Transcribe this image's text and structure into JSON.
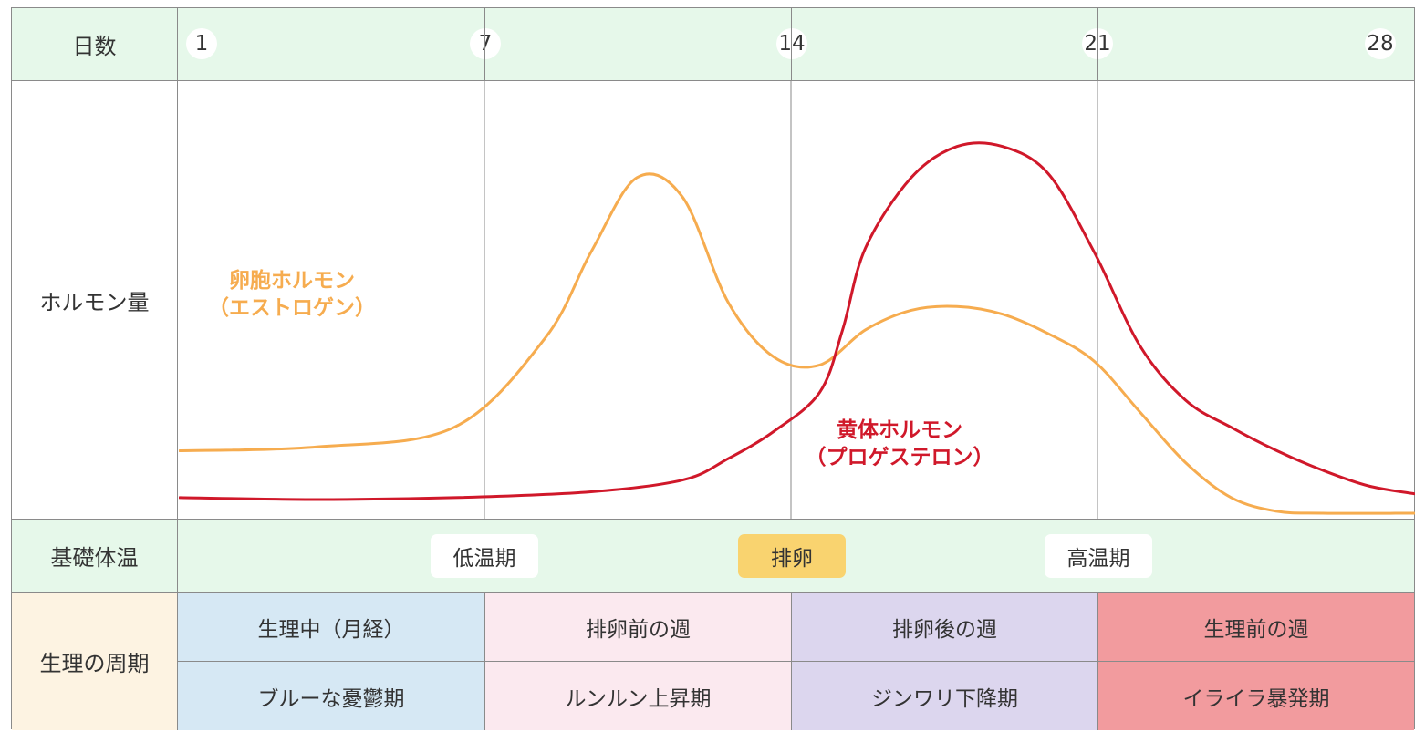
{
  "rows": {
    "days_label": "日数",
    "hormone_label": "ホルモン量",
    "temp_label": "基礎体温",
    "cycle_label": "生理の周期"
  },
  "days": [
    "1",
    "7",
    "14",
    "21",
    "28"
  ],
  "temperature": {
    "low": "低温期",
    "ovulation": "排卵",
    "high": "高温期"
  },
  "cycle": [
    {
      "top": "生理中（月経）",
      "bottom": "ブルーな憂鬱期",
      "color": "#d6e8f4"
    },
    {
      "top": "排卵前の週",
      "bottom": "ルンルン上昇期",
      "color": "#fbe9ef"
    },
    {
      "top": "排卵後の週",
      "bottom": "ジンワリ下降期",
      "color": "#dcd6ee"
    },
    {
      "top": "生理前の週",
      "bottom": "イライラ暴発期",
      "color": "#f29b9e"
    }
  ],
  "colors": {
    "estrogen": "#f6ac4f",
    "progesterone": "#d0182a",
    "ovulation_badge": "#f9d36f"
  },
  "chart_data": {
    "type": "line",
    "xlabel": "日数",
    "ylabel": "ホルモン量",
    "x_ticks": [
      1,
      7,
      14,
      21,
      28
    ],
    "xlim": [
      1,
      28
    ],
    "ylim": [
      0,
      100
    ],
    "series": [
      {
        "name": "卵胞ホルモン（エストロゲン）",
        "name_line1": "卵胞ホルモン",
        "name_line2": "（エストロゲン）",
        "color": "#f6ac4f",
        "x": [
          1,
          4,
          7,
          9,
          10,
          11,
          12,
          13,
          14,
          15,
          16,
          17,
          18,
          19,
          20,
          21,
          22,
          23,
          24,
          25,
          26,
          28
        ],
        "y": [
          16,
          17,
          22,
          45,
          67,
          86,
          81,
          54,
          40,
          38,
          47,
          52,
          53,
          51,
          46,
          39,
          26,
          13,
          4,
          0.5,
          0,
          0
        ]
      },
      {
        "name": "黄体ホルモン（プロゲステロン）",
        "name_line1": "黄体ホルモン",
        "name_line2": "（プロゲステロン）",
        "color": "#d0182a",
        "x": [
          1,
          4,
          7,
          10,
          12,
          13,
          14,
          15,
          15.5,
          16,
          17,
          18,
          19,
          20,
          21,
          22,
          23,
          24,
          25,
          26,
          27,
          28
        ],
        "y": [
          4,
          3.5,
          4,
          5.5,
          8.5,
          14,
          21,
          31,
          47,
          68,
          86,
          94,
          94,
          87,
          67,
          43,
          29,
          22,
          16,
          11,
          7,
          5
        ]
      }
    ]
  }
}
